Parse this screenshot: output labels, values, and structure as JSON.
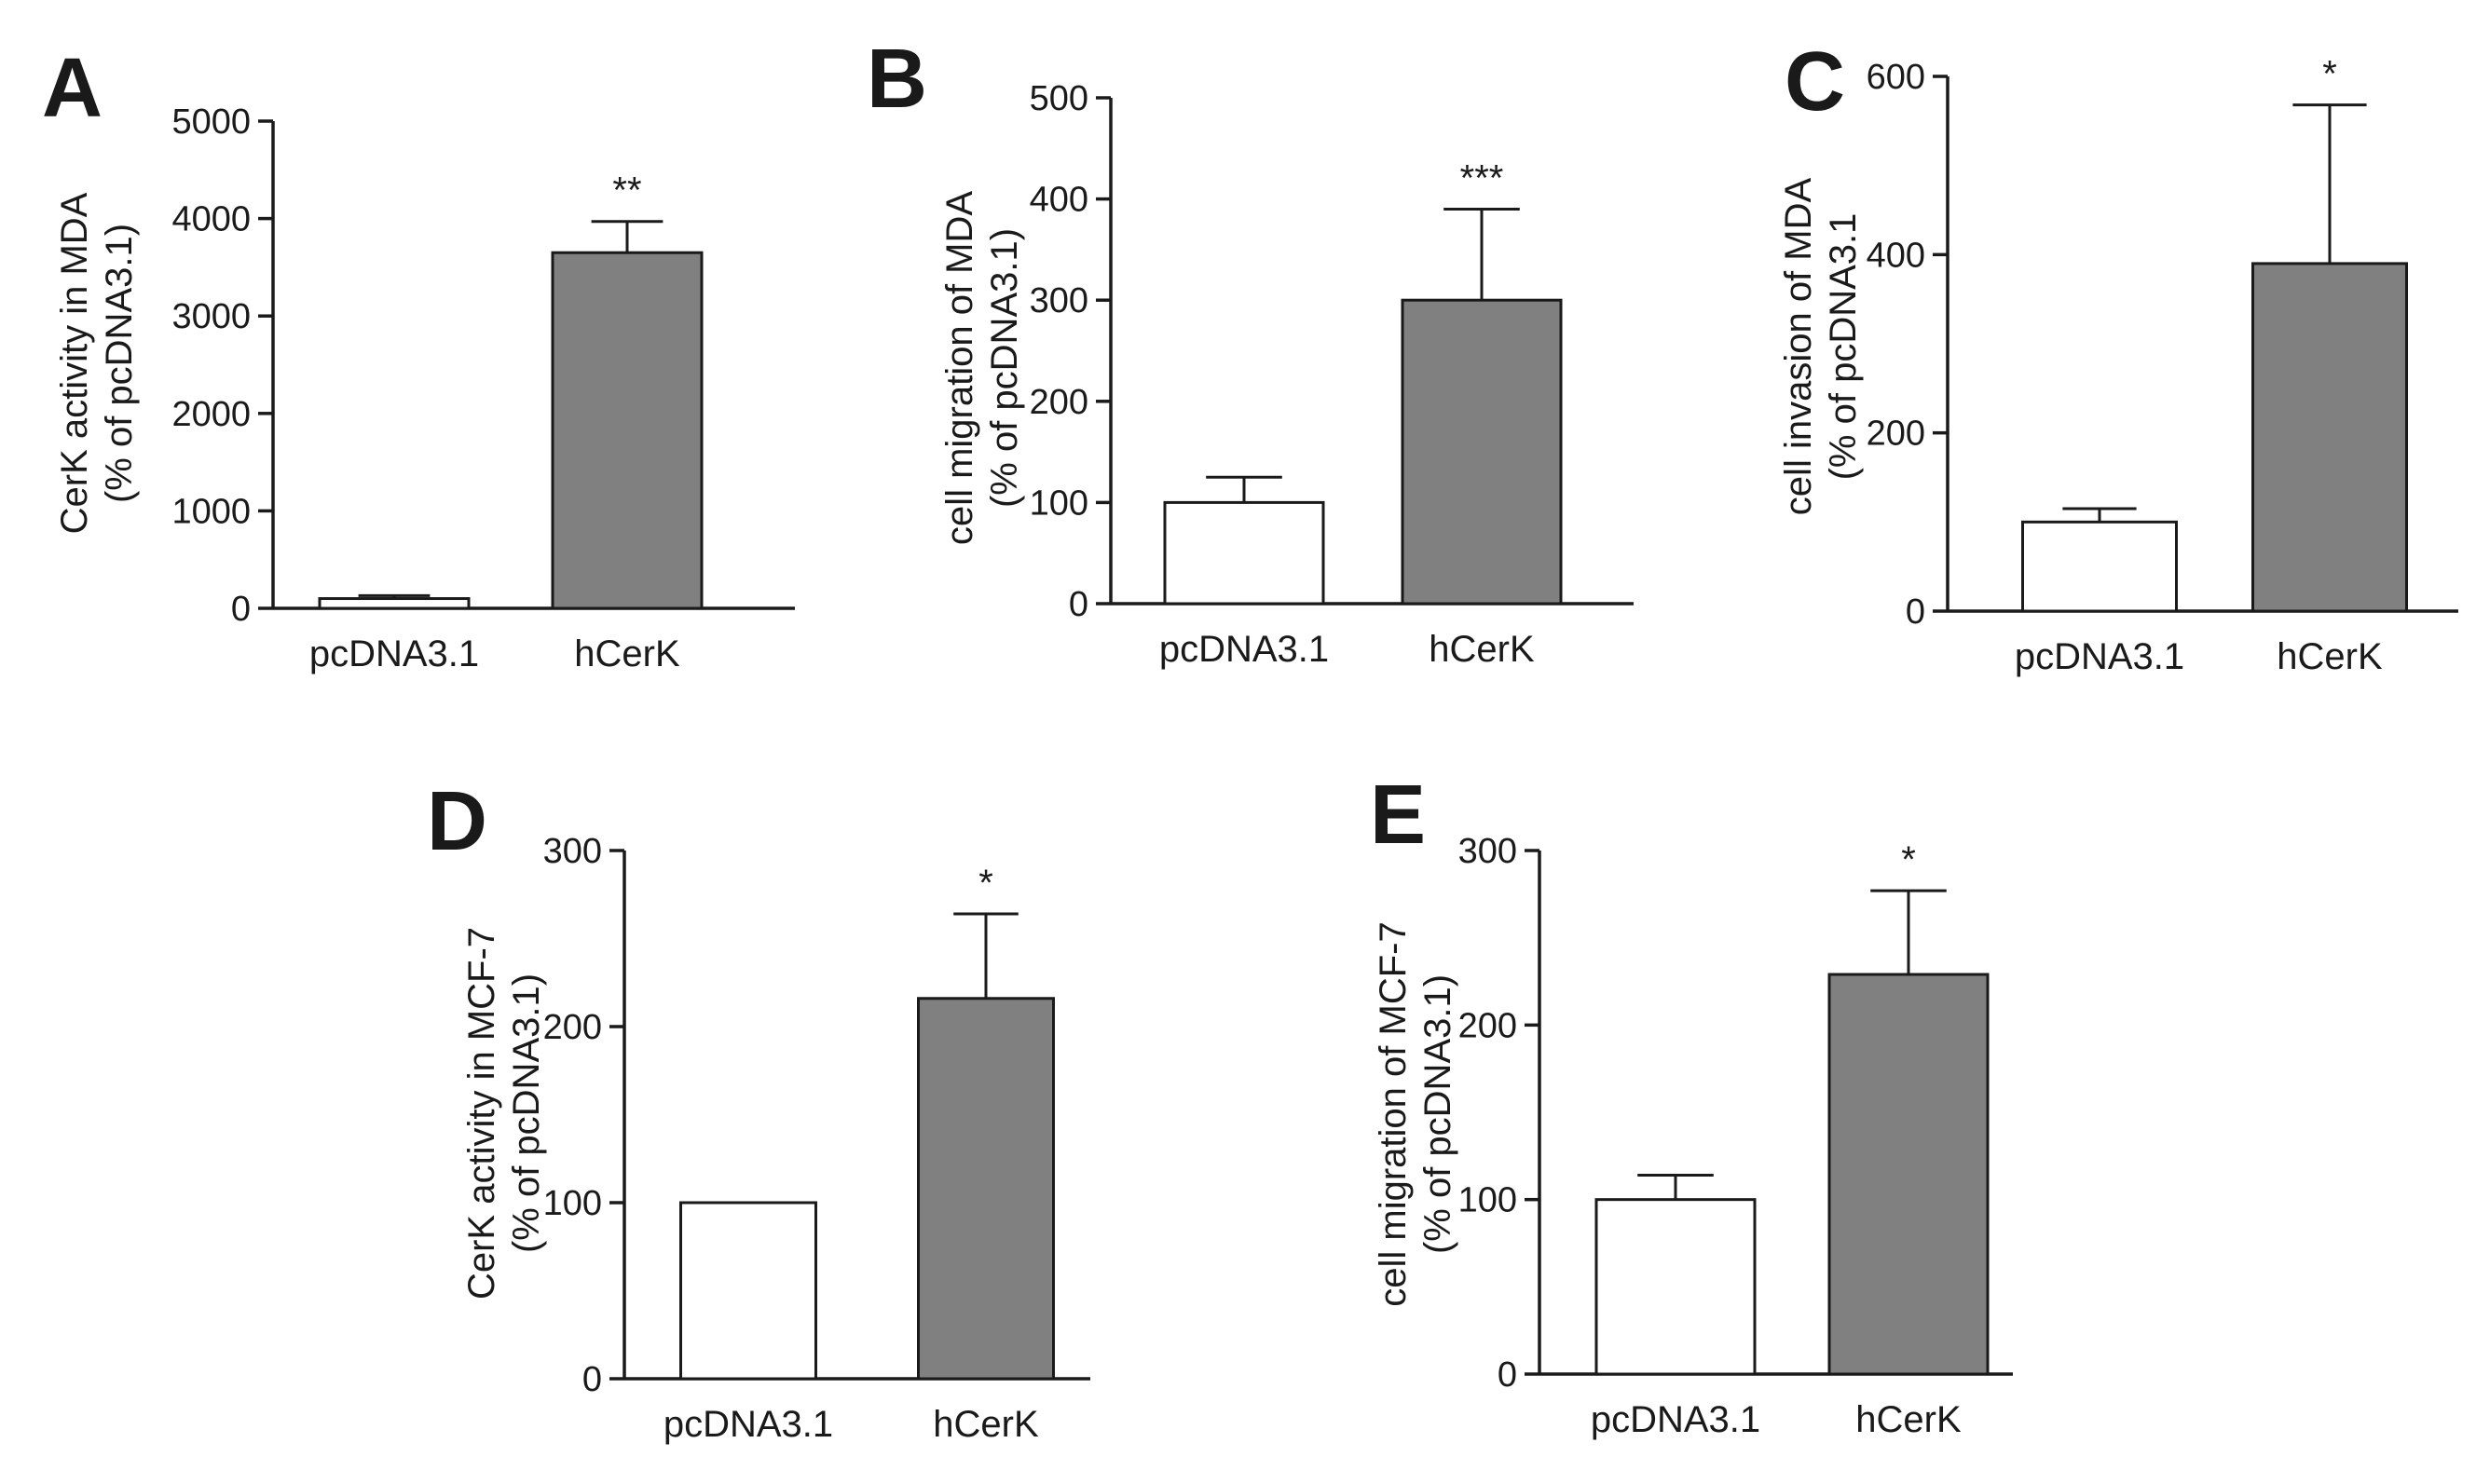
{
  "chart_data": [
    {
      "type": "bar",
      "panel": "A",
      "categories": [
        "pcDNA3.1",
        "hCerK"
      ],
      "values": [
        100,
        3650
      ],
      "errors": [
        30,
        320
      ],
      "bar_colors": [
        "#ffffff",
        "#808080"
      ],
      "significance": [
        "",
        "**"
      ],
      "ylabel": [
        "CerK activity  in MDA",
        "(% of pcDNA3.1)"
      ],
      "ylim": [
        0,
        5000
      ],
      "yticks": [
        0,
        1000,
        2000,
        3000,
        4000,
        5000
      ]
    },
    {
      "type": "bar",
      "panel": "B",
      "categories": [
        "pcDNA3.1",
        "hCerK"
      ],
      "values": [
        100,
        300
      ],
      "errors": [
        25,
        90
      ],
      "bar_colors": [
        "#ffffff",
        "#808080"
      ],
      "significance": [
        "",
        "***"
      ],
      "ylabel": [
        "cell migration of MDA",
        "(% of pcDNA3.1)"
      ],
      "ylim": [
        0,
        500
      ],
      "yticks": [
        0,
        100,
        200,
        300,
        400,
        500
      ]
    },
    {
      "type": "bar",
      "panel": "C",
      "categories": [
        "pcDNA3.1",
        "hCerK"
      ],
      "values": [
        100,
        390
      ],
      "errors": [
        15,
        178
      ],
      "bar_colors": [
        "#ffffff",
        "#808080"
      ],
      "significance": [
        "",
        "*"
      ],
      "ylabel": [
        "cell invasion of MDA",
        "(% of pcDNA3.1"
      ],
      "ylim": [
        0,
        600
      ],
      "yticks": [
        0,
        200,
        400,
        600
      ]
    },
    {
      "type": "bar",
      "panel": "D",
      "categories": [
        "pcDNA3.1",
        "hCerK"
      ],
      "values": [
        100,
        216
      ],
      "errors": [
        0,
        48
      ],
      "bar_colors": [
        "#ffffff",
        "#808080"
      ],
      "significance": [
        "",
        "*"
      ],
      "ylabel": [
        "CerK activity in MCF-7",
        "(% of pcDNA3.1)"
      ],
      "ylim": [
        0,
        300
      ],
      "yticks": [
        0,
        100,
        200,
        300
      ]
    },
    {
      "type": "bar",
      "panel": "E",
      "categories": [
        "pcDNA3.1",
        "hCerK"
      ],
      "values": [
        100,
        229
      ],
      "errors": [
        14,
        48
      ],
      "bar_colors": [
        "#ffffff",
        "#808080"
      ],
      "significance": [
        "",
        "*"
      ],
      "ylabel": [
        "cell migration of MCF-7",
        "(% of pcDNA3.1)"
      ],
      "ylim": [
        0,
        300
      ],
      "yticks": [
        0,
        100,
        200,
        300
      ]
    }
  ]
}
